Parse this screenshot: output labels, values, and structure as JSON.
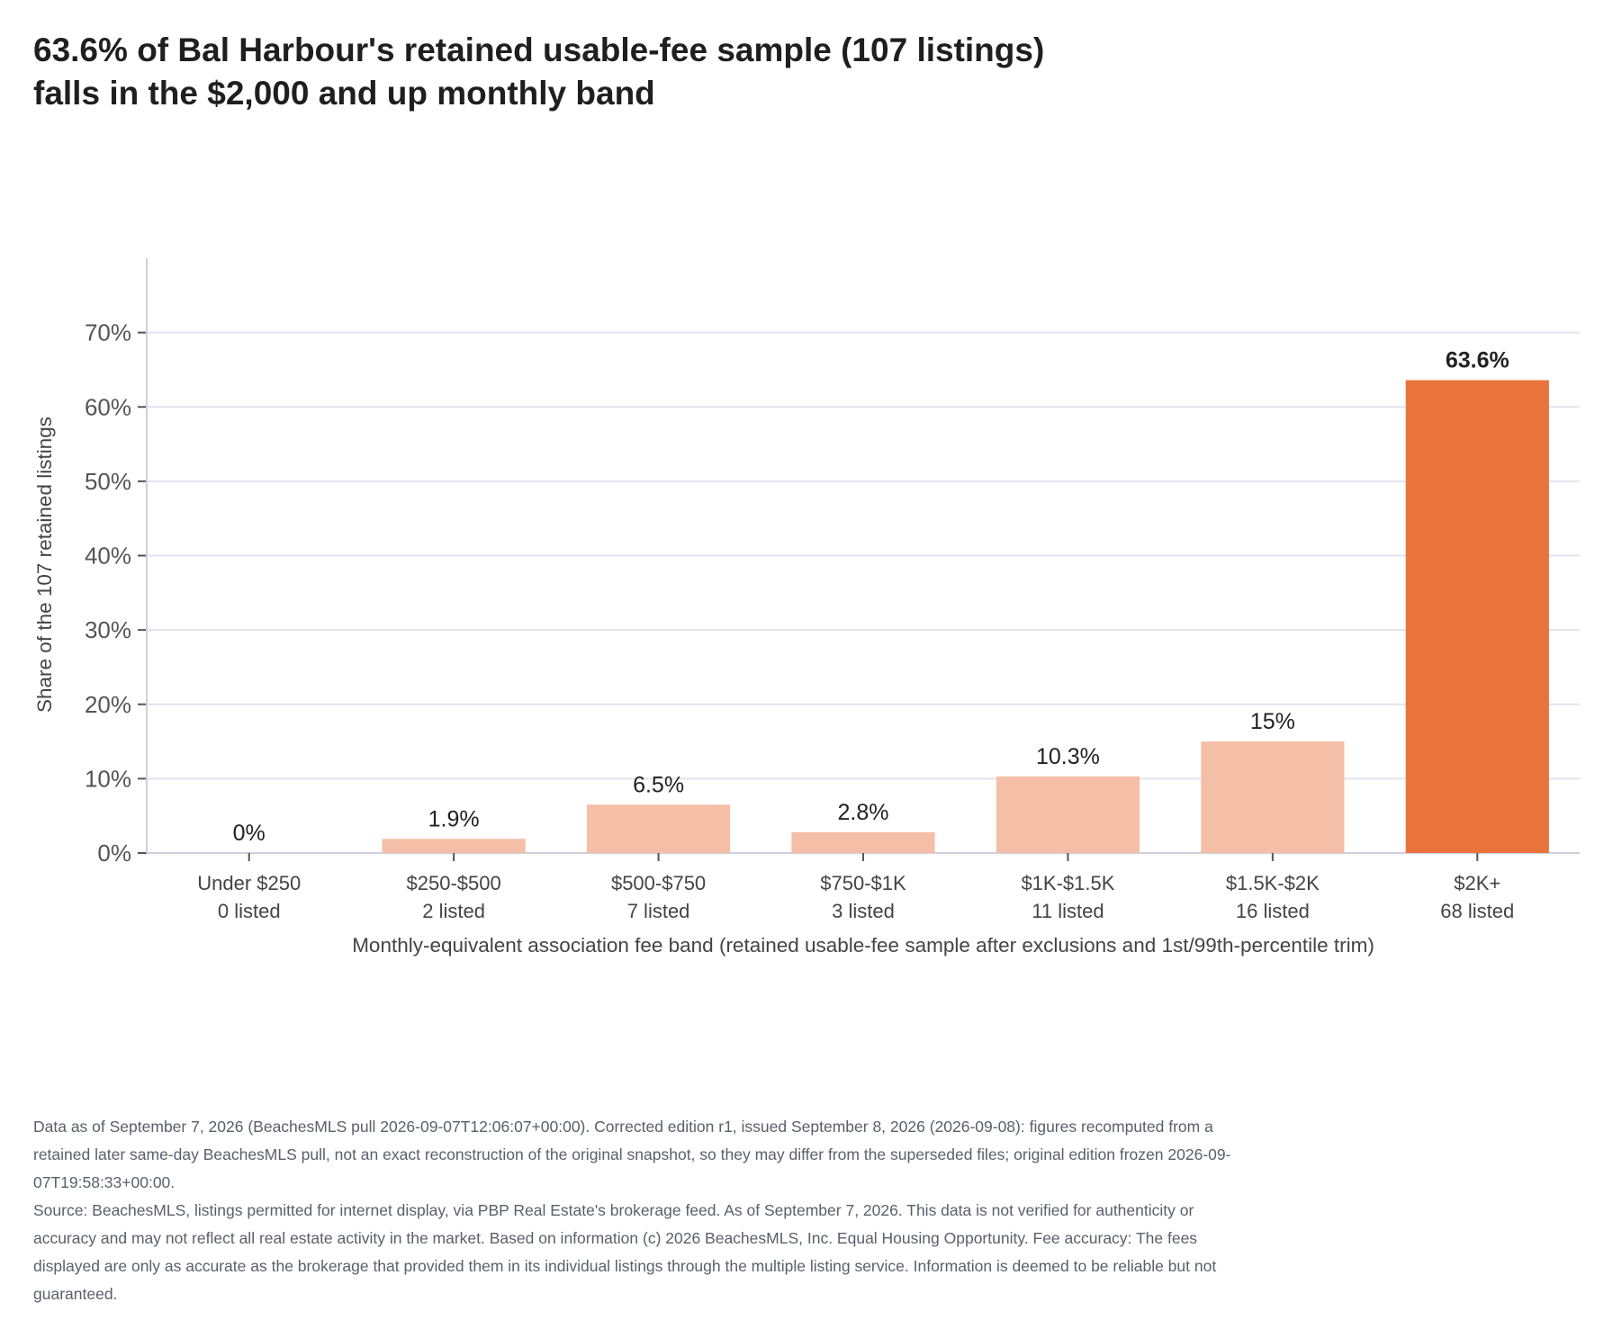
{
  "chart_data": {
    "type": "bar",
    "title_lines": [
      "63.6% of Bal Harbour's retained usable-fee sample (107 listings)",
      "falls in the $2,000 and up monthly band"
    ],
    "xlabel": "Monthly-equivalent association fee band (retained usable-fee sample after exclusions and 1st/99th-percentile trim)",
    "ylabel": "Share of the 107 retained listings",
    "ylim": [
      0,
      80
    ],
    "yticks": [
      0,
      10,
      20,
      30,
      40,
      50,
      60,
      70
    ],
    "ytick_labels": [
      "0%",
      "10%",
      "20%",
      "30%",
      "40%",
      "50%",
      "60%",
      "70%"
    ],
    "grid": true,
    "categories": [
      "Under $250",
      "$250-$500",
      "$500-$750",
      "$750-$1K",
      "$1K-$1.5K",
      "$1.5K-$2K",
      "$2K+"
    ],
    "counts": [
      "0 listed",
      "2 listed",
      "7 listed",
      "3 listed",
      "11 listed",
      "16 listed",
      "68 listed"
    ],
    "values": [
      0,
      1.9,
      6.5,
      2.8,
      10.3,
      15,
      63.6
    ],
    "value_labels": [
      "0%",
      "1.9%",
      "6.5%",
      "2.8%",
      "10.3%",
      "15%",
      "63.6%"
    ],
    "highlight_index": 6,
    "colors": {
      "bar": "#f5bea6",
      "highlight": "#e8743c",
      "grid": "#e3e3ef",
      "axis": "#d0d0dc"
    }
  },
  "notes": {
    "data_note": "Data as of September 7, 2026 (BeachesMLS pull 2026-09-07T12:06:07+00:00). Corrected edition r1, issued September 8, 2026 (2026-09-08): figures recomputed from a retained later same-day BeachesMLS pull, not an exact reconstruction of the original snapshot, so they may differ from the superseded files; original edition frozen 2026-09-07T19:58:33+00:00.",
    "source_note": "Source: BeachesMLS, listings permitted for internet display, via PBP Real Estate's brokerage feed. As of September 7, 2026. This data is not verified for authenticity or accuracy and may not reflect all real estate activity in the market. Based on information (c) 2026 BeachesMLS, Inc. Equal Housing Opportunity. Fee accuracy: The fees displayed are only as accurate as the brokerage that provided them in its individual listings through the multiple listing service. Information is deemed to be reliable but not guaranteed."
  }
}
